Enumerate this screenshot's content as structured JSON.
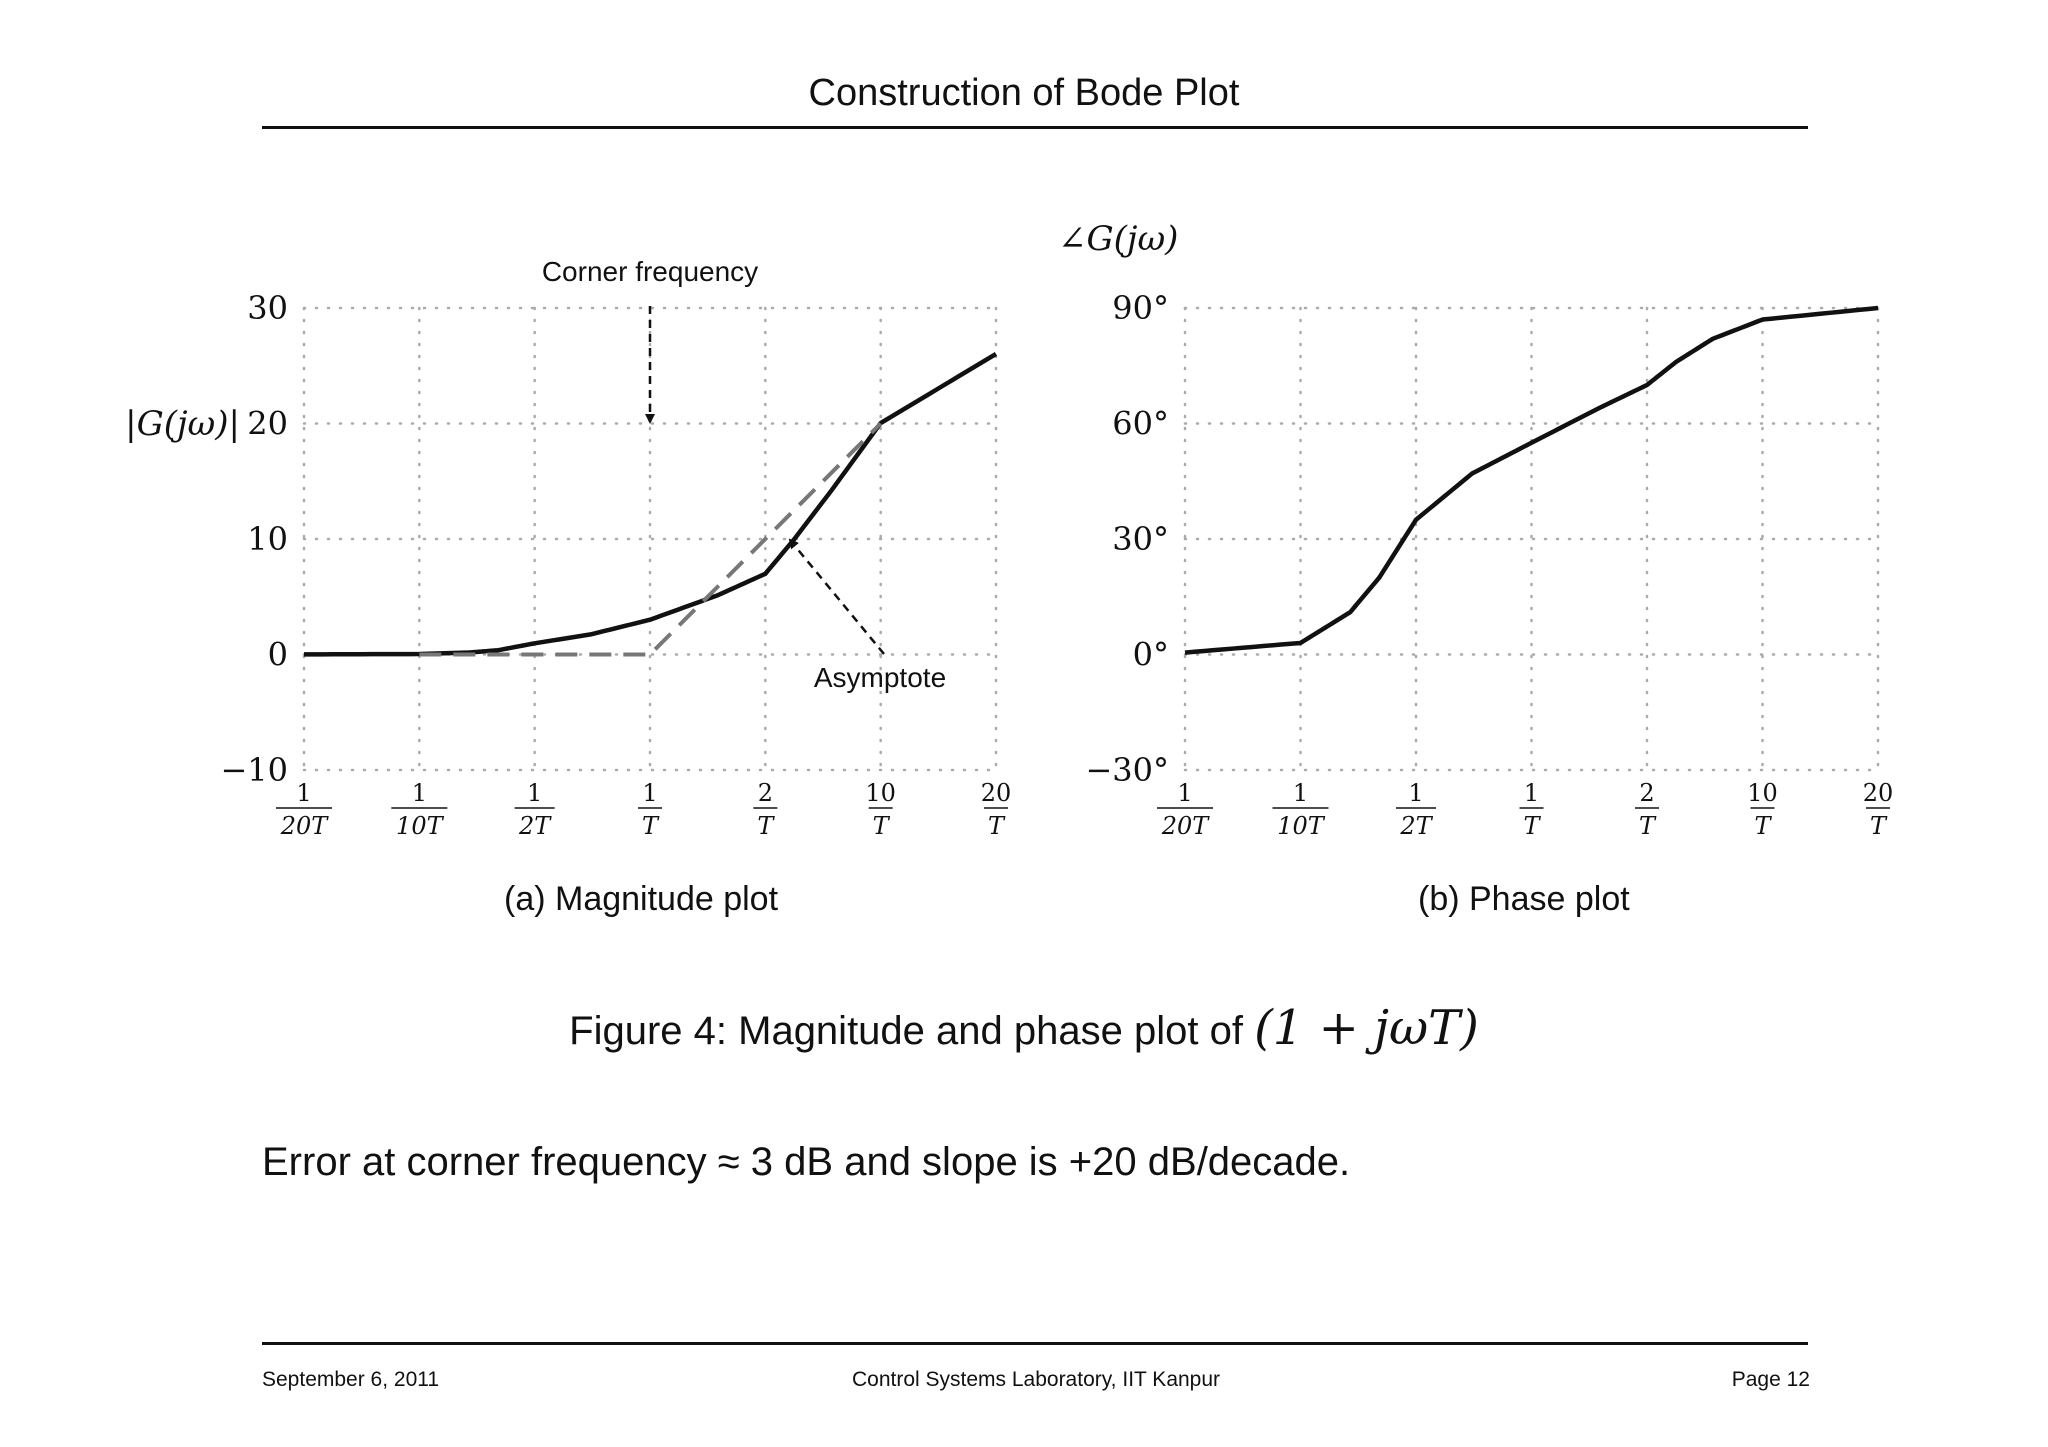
{
  "header": {
    "title": "Construction of Bode Plot"
  },
  "footer": {
    "left": "September 6, 2011",
    "center": "Control Systems Laboratory, IIT Kanpur",
    "right": "Page 12"
  },
  "figure": {
    "caption_prefix": "Figure 4: Magnitude and phase plot of ",
    "caption_math": "(1 + jωT)",
    "sub_a": "(a)  Magnitude plot",
    "sub_b": "(b)  Phase plot"
  },
  "body": {
    "text": "Error at corner frequency ≈ 3 dB and slope is +20 dB/decade."
  },
  "annotations": {
    "corner": "Corner frequency",
    "asymptote": "Asymptote"
  },
  "chart_data": [
    {
      "type": "line",
      "ylabel": "|G(jω)|",
      "x_ticks": [
        {
          "num": "1",
          "den": "20T",
          "omegaT": 0.05
        },
        {
          "num": "1",
          "den": "10T",
          "omegaT": 0.1
        },
        {
          "num": "1",
          "den": "2T",
          "omegaT": 0.5
        },
        {
          "num": "1",
          "den": "T",
          "omegaT": 1
        },
        {
          "num": "2",
          "den": "T",
          "omegaT": 2
        },
        {
          "num": "10",
          "den": "T",
          "omegaT": 10
        },
        {
          "num": "20",
          "den": "T",
          "omegaT": 20
        }
      ],
      "y_ticks": [
        "−10",
        "0",
        "10",
        "20",
        "30"
      ],
      "ylim": [
        -10,
        30
      ],
      "grid": true,
      "series": [
        {
          "style": "solid",
          "x": [
            0.05,
            0.1,
            0.2,
            0.3,
            0.5,
            0.7,
            1,
            1.5,
            2,
            3,
            5,
            10,
            20
          ],
          "y": [
            0.01,
            0.04,
            0.17,
            0.37,
            0.97,
            1.74,
            3.01,
            5.12,
            6.99,
            10.0,
            14.15,
            20.04,
            26.02
          ]
        },
        {
          "style": "dashed",
          "x": [
            0.1,
            1,
            10
          ],
          "y": [
            0,
            0,
            20
          ]
        }
      ]
    },
    {
      "type": "line",
      "ylabel": "∠G(jω)",
      "x_ticks": [
        {
          "num": "1",
          "den": "20T",
          "omegaT": 0.05
        },
        {
          "num": "1",
          "den": "10T",
          "omegaT": 0.1
        },
        {
          "num": "1",
          "den": "2T",
          "omegaT": 0.5
        },
        {
          "num": "1",
          "den": "T",
          "omegaT": 1
        },
        {
          "num": "2",
          "den": "T",
          "omegaT": 2
        },
        {
          "num": "10",
          "den": "T",
          "omegaT": 10
        },
        {
          "num": "20",
          "den": "T",
          "omegaT": 20
        }
      ],
      "y_ticks": [
        "−30°",
        "0°",
        "30°",
        "60°",
        "90°"
      ],
      "ylim": [
        -30,
        90
      ],
      "grid": true,
      "series": [
        {
          "style": "solid",
          "x": [
            0.05,
            0.1,
            0.2,
            0.3,
            0.5,
            0.7,
            1,
            1.5,
            2,
            3,
            5,
            10,
            20
          ],
          "y": [
            0.5,
            3,
            11,
            20,
            35,
            47,
            55,
            64,
            70,
            76,
            82,
            87,
            90
          ]
        }
      ]
    }
  ]
}
